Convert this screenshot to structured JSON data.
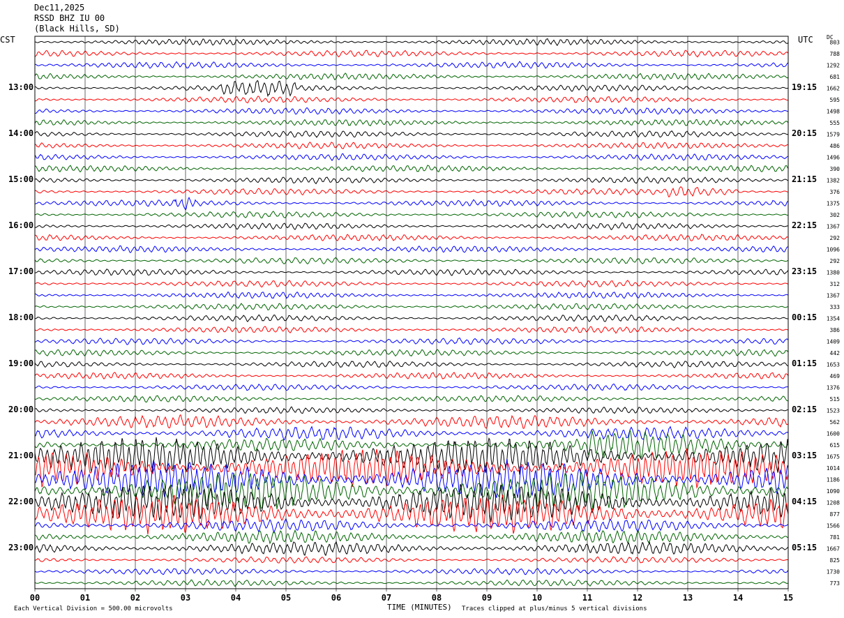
{
  "header": {
    "date": "Dec11,2025",
    "station": "RSSD BHZ IU 00",
    "location": "(Black Hills, SD)"
  },
  "axes": {
    "left_timezone": "CST",
    "right_timezone": "UTC",
    "dc_label": "DC",
    "xlabel": "TIME (MINUTES)"
  },
  "footer": {
    "scale_note": "Each Vertical Division =  500.00 microvolts",
    "clip_note": "Traces clipped at plus/minus 5 vertical divisions"
  },
  "colors": {
    "trace_cycle": [
      "#000000",
      "#ff0000",
      "#0000ff",
      "#006400"
    ],
    "grid": "#000000"
  },
  "chart_data": {
    "type": "line",
    "title": "RSSD BHZ IU 00 (Black Hills, SD) Dec11,2025",
    "xlabel": "TIME (MINUTES)",
    "xlim": [
      0,
      15
    ],
    "x_ticks": [
      "00",
      "01",
      "02",
      "03",
      "04",
      "05",
      "06",
      "07",
      "08",
      "09",
      "10",
      "11",
      "12",
      "13",
      "14",
      "15"
    ],
    "trace_interval_minutes": 15,
    "left_time_labels": [
      "13:00",
      "14:00",
      "15:00",
      "16:00",
      "17:00",
      "18:00",
      "19:00",
      "20:00",
      "21:00",
      "22:00",
      "23:00"
    ],
    "right_time_labels": [
      "19:15",
      "20:15",
      "21:15",
      "22:15",
      "23:15",
      "00:15",
      "01:15",
      "02:15",
      "03:15",
      "04:15",
      "05:15"
    ],
    "dc_offsets": [
      "803",
      "788",
      "1292",
      "681",
      "1662",
      "595",
      "1498",
      "555",
      "1579",
      "486",
      "1496",
      "390",
      "1382",
      "376",
      "1375",
      "302",
      "1367",
      "292",
      "1096",
      "292",
      "1380",
      "312",
      "1367",
      "333",
      "1354",
      "386",
      "1409",
      "442",
      "1653",
      "469",
      "1376",
      "515",
      "1523",
      "562",
      "1600",
      "615",
      "1675",
      "1014",
      "1186",
      "1090",
      "1208",
      "877",
      "1566",
      "781",
      "1667",
      "825",
      "1730",
      "773"
    ],
    "events": [
      {
        "trace": 4,
        "start_min": 3.7,
        "end_min": 5.2,
        "type": "burst"
      },
      {
        "trace": 13,
        "start_min": 12.6,
        "end_min": 14.0,
        "type": "burst"
      },
      {
        "trace": 14,
        "start_min": 2.8,
        "end_min": 3.2,
        "type": "burst"
      },
      {
        "trace": 35,
        "start_min": 11.0,
        "end_min": 15.0,
        "type": "clipped"
      }
    ],
    "clip_divisions": 5,
    "microvolts_per_division": 500.0
  }
}
